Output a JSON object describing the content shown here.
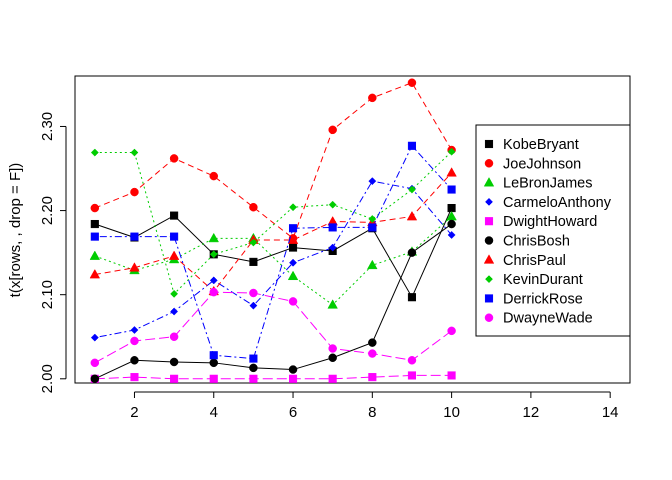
{
  "chart_data": {
    "type": "line",
    "ylabel": "t(x[rows, , drop = F])",
    "xlabel": "",
    "xlim": [
      0.5,
      14.5
    ],
    "ylim": [
      1.995,
      2.36
    ],
    "x_ticks": [
      2,
      4,
      6,
      8,
      10,
      12,
      14
    ],
    "y_ticks": [
      2.0,
      2.1,
      2.2,
      2.3
    ],
    "y_tick_labels": [
      "2.00",
      "2.10",
      "2.20",
      "2.30"
    ],
    "legend_position": "right",
    "x": [
      1,
      2,
      3,
      4,
      5,
      6,
      7,
      8,
      9,
      10
    ],
    "series": [
      {
        "name": "KobeBryant",
        "color": "#000000",
        "marker": "square",
        "dash": "",
        "values": [
          2.184,
          2.168,
          2.194,
          2.148,
          2.139,
          2.156,
          2.152,
          2.179,
          2.097,
          2.203
        ]
      },
      {
        "name": "JoeJohnson",
        "color": "#ff0000",
        "marker": "circle",
        "dash": "6,4",
        "values": [
          2.203,
          2.222,
          2.262,
          2.241,
          2.204,
          2.167,
          2.296,
          2.334,
          2.352,
          2.272
        ]
      },
      {
        "name": "LeBronJames",
        "color": "#00cd00",
        "marker": "triangle",
        "dash": "2,3",
        "values": [
          2.146,
          2.129,
          2.142,
          2.167,
          2.167,
          2.122,
          2.088,
          2.135,
          2.151,
          2.193
        ]
      },
      {
        "name": "CarmeloAnthony",
        "color": "#0000ff",
        "marker": "diamond",
        "dash": "2,3,7,3",
        "values": [
          2.049,
          2.058,
          2.08,
          2.117,
          2.087,
          2.138,
          2.156,
          2.235,
          2.226,
          2.171
        ]
      },
      {
        "name": "DwightHoward",
        "color": "#ff00ff",
        "marker": "square",
        "dash": "10,4",
        "values": [
          2.0,
          2.002,
          2.0,
          2.0,
          2.0,
          2.0,
          2.0,
          2.002,
          2.004,
          2.004
        ]
      },
      {
        "name": "ChrisBosh",
        "color": "#000000",
        "marker": "circle",
        "dash": "",
        "values": [
          2.0,
          2.022,
          2.02,
          2.019,
          2.013,
          2.011,
          2.025,
          2.043,
          2.15,
          2.184
        ]
      },
      {
        "name": "ChrisPaul",
        "color": "#ff0000",
        "marker": "triangle",
        "dash": "6,4",
        "values": [
          2.124,
          2.132,
          2.146,
          2.104,
          2.165,
          2.165,
          2.187,
          2.186,
          2.193,
          2.245
        ]
      },
      {
        "name": "KevinDurant",
        "color": "#00cd00",
        "marker": "diamond",
        "dash": "2,3",
        "values": [
          2.269,
          2.269,
          2.101,
          2.148,
          2.162,
          2.204,
          2.207,
          2.19,
          2.225,
          2.27
        ]
      },
      {
        "name": "DerrickRose",
        "color": "#0000ff",
        "marker": "square",
        "dash": "2,3,7,3",
        "values": [
          2.169,
          2.169,
          2.169,
          2.028,
          2.024,
          2.179,
          2.18,
          2.18,
          2.277,
          2.225
        ]
      },
      {
        "name": "DwayneWade",
        "color": "#ff00ff",
        "marker": "circle",
        "dash": "10,4",
        "values": [
          2.019,
          2.045,
          2.05,
          2.103,
          2.102,
          2.092,
          2.036,
          2.03,
          2.022,
          2.057
        ]
      }
    ]
  }
}
